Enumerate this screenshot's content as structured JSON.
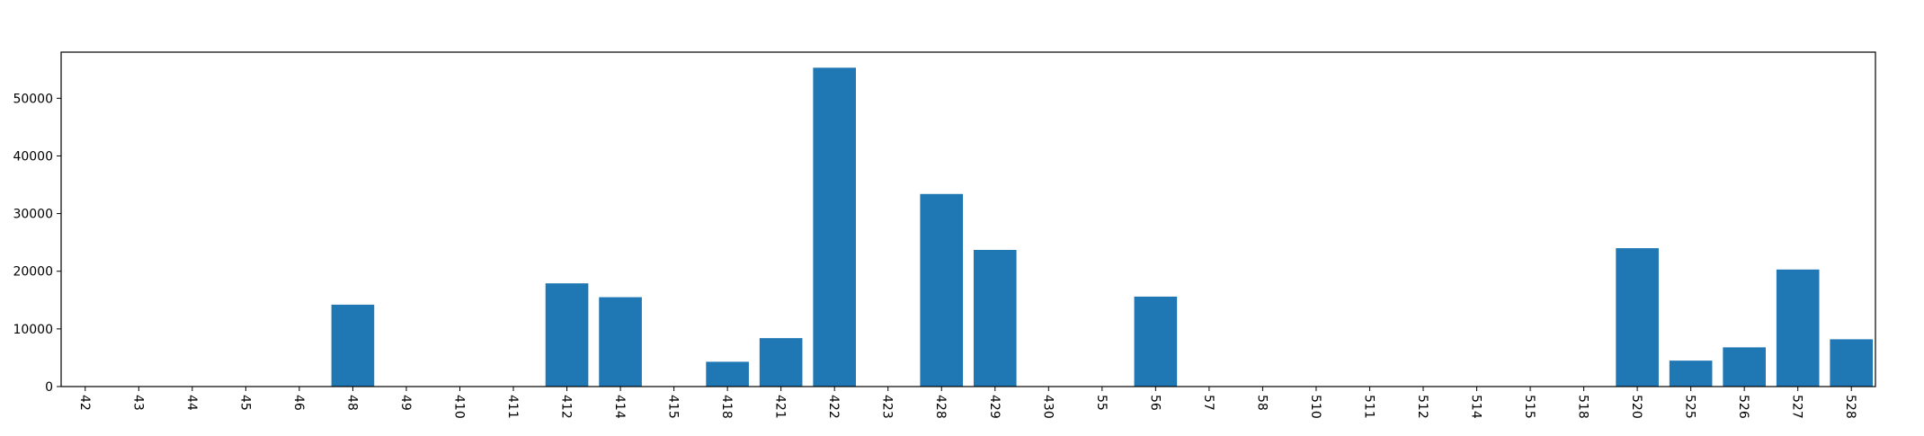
{
  "chart_data": {
    "type": "bar",
    "title": "",
    "xlabel": "",
    "ylabel": "",
    "categories": [
      "42",
      "43",
      "44",
      "45",
      "46",
      "48",
      "49",
      "410",
      "411",
      "412",
      "414",
      "415",
      "418",
      "421",
      "422",
      "423",
      "428",
      "429",
      "430",
      "55",
      "56",
      "57",
      "58",
      "510",
      "511",
      "512",
      "514",
      "515",
      "518",
      "520",
      "525",
      "526",
      "527",
      "528"
    ],
    "values": [
      0,
      0,
      0,
      0,
      0,
      14200,
      0,
      0,
      0,
      17900,
      15500,
      0,
      4300,
      8400,
      55300,
      0,
      33400,
      23700,
      0,
      0,
      15600,
      0,
      0,
      0,
      0,
      0,
      0,
      0,
      0,
      24000,
      4500,
      6800,
      20300,
      8200
    ],
    "ylim": [
      0,
      58000
    ],
    "yticks": [
      0,
      10000,
      20000,
      30000,
      40000,
      50000
    ],
    "xtick_rotation": "vertical-down",
    "grid": false,
    "legend": false,
    "colors": {
      "bar": "#1f77b4",
      "axes": "#000000",
      "background": "#ffffff"
    }
  }
}
